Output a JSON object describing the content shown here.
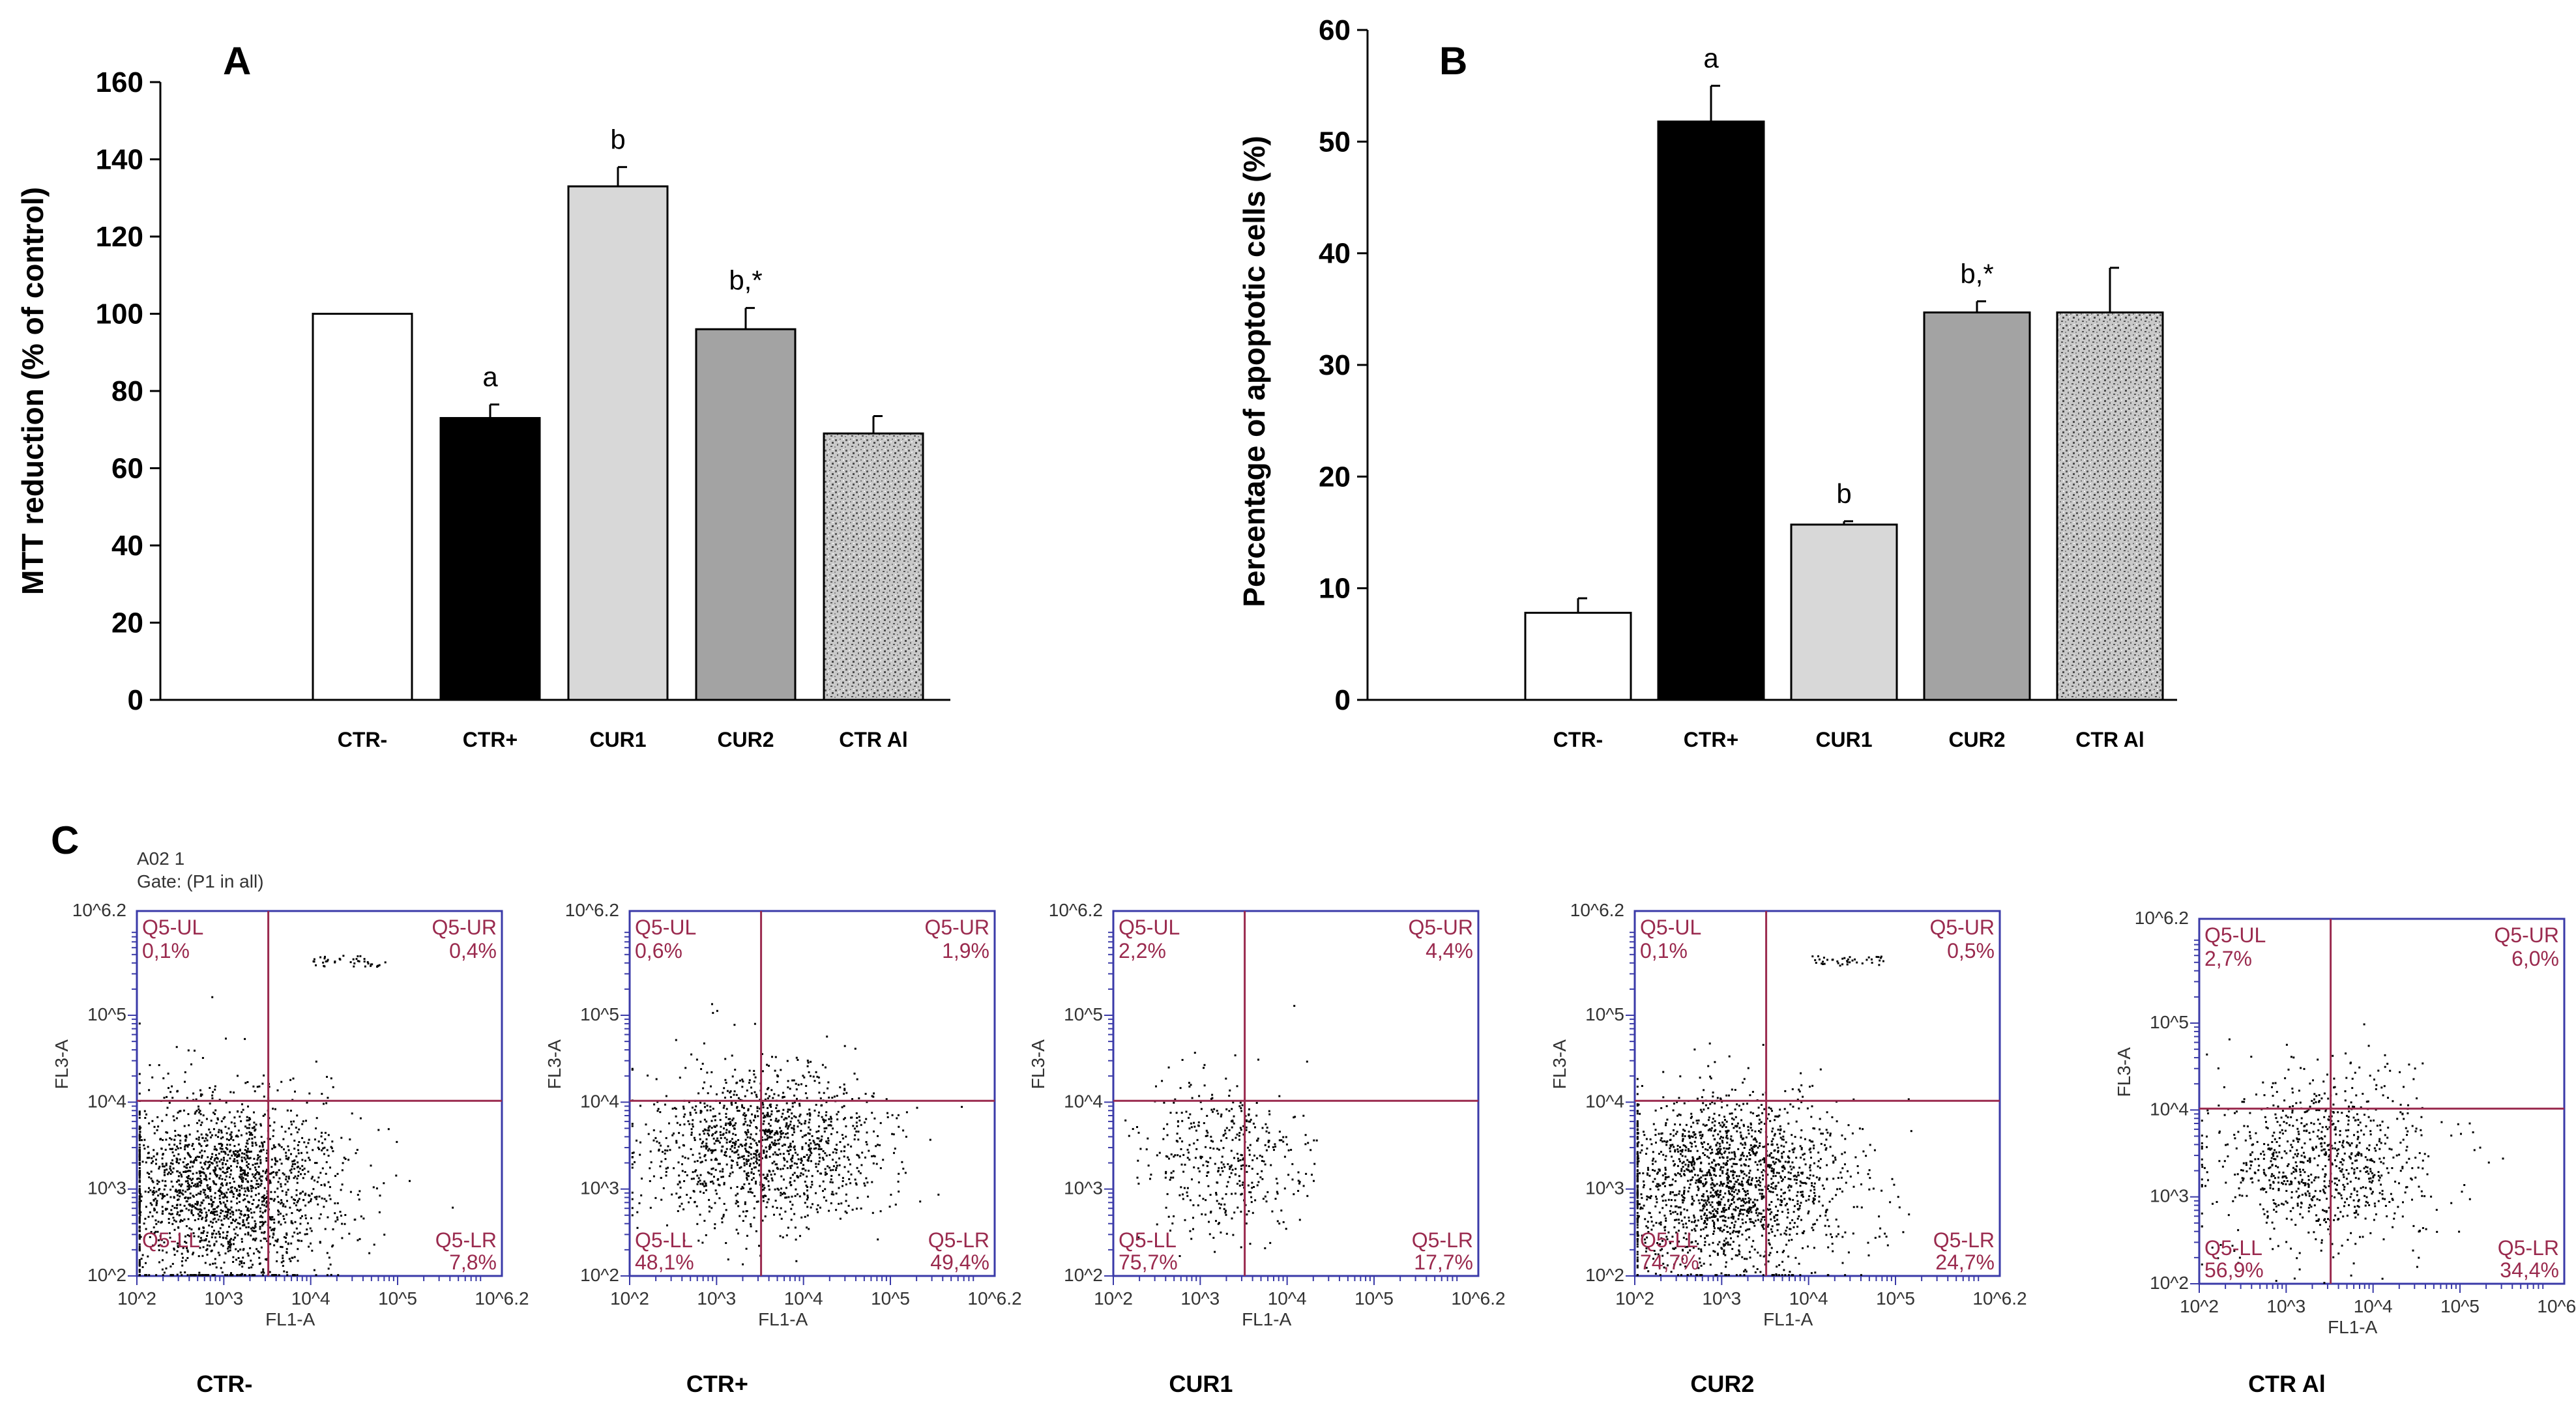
{
  "chart_data": [
    {
      "panel": "A",
      "type": "bar",
      "ylabel": "MTT reduction (% of control)",
      "ylim": [
        0,
        160
      ],
      "yticks": [
        "0",
        "20",
        "40",
        "60",
        "80",
        "100",
        "120",
        "140",
        "160"
      ],
      "categories": [
        "CTR-",
        "CTR+",
        "CUR1",
        "CUR2",
        "CTR Al"
      ],
      "values": [
        100,
        73,
        133,
        96,
        69
      ],
      "errors": [
        0,
        3.5,
        5,
        5.5,
        4.5
      ],
      "annotations": [
        "",
        "a",
        "b",
        "b,*",
        ""
      ],
      "fills": [
        "white",
        "black",
        "light-gray",
        "mid-gray",
        "speckled"
      ]
    },
    {
      "panel": "B",
      "type": "bar",
      "ylabel": "Percentage of apoptotic cells (%)",
      "ylim": [
        0,
        60
      ],
      "yticks": [
        "0",
        "10",
        "20",
        "30",
        "40",
        "50",
        "60"
      ],
      "categories": [
        "CTR-",
        "CTR+",
        "CUR1",
        "CUR2",
        "CTR Al"
      ],
      "values": [
        7.8,
        51.8,
        15.7,
        34.7,
        34.7
      ],
      "errors": [
        1.3,
        3.2,
        0.3,
        1.0,
        4.0
      ],
      "annotations": [
        "",
        "a",
        "b",
        "b,*",
        ""
      ],
      "fills": [
        "white",
        "black",
        "light-gray",
        "mid-gray",
        "speckled"
      ]
    },
    {
      "panel": "C",
      "type": "scatter",
      "xlabel": "FL1-A",
      "ylabel": "FL3-A",
      "axis_ticks": [
        "10^2",
        "10^3",
        "10^4",
        "10^5",
        "10^6.2"
      ],
      "header": [
        "A02 1",
        "Gate: (P1 in all)"
      ],
      "plots": [
        {
          "name": "CTR-",
          "UL": "0,1%",
          "UR": "0,4%",
          "LL": "",
          "LR": "7,8%"
        },
        {
          "name": "CTR+",
          "UL": "0,6%",
          "UR": "1,9%",
          "LL": "48,1%",
          "LR": "49,4%"
        },
        {
          "name": "CUR1",
          "UL": "2,2%",
          "UR": "4,4%",
          "LL": "75,7%",
          "LR": "17,7%"
        },
        {
          "name": "CUR2",
          "UL": "0,1%",
          "UR": "0,5%",
          "LL": "74,7%",
          "LR": "24,7%"
        },
        {
          "name": "CTR Al",
          "UL": "2,7%",
          "UR": "6,0%",
          "LL": "56,9%",
          "LR": "34,4%"
        }
      ],
      "quadrant_labels": {
        "UL": "Q5-UL",
        "UR": "Q5-UR",
        "LL": "Q5-LL",
        "LR": "Q5-LR"
      }
    }
  ],
  "colors": {
    "bar_white": "#ffffff",
    "bar_black": "#000000",
    "bar_light": "#d8d8d8",
    "bar_mid": "#a3a3a3",
    "speckle_base": "#c9c9c9",
    "flow_axis": "#3a3aa8",
    "flow_gate": "#9a2a4e"
  }
}
